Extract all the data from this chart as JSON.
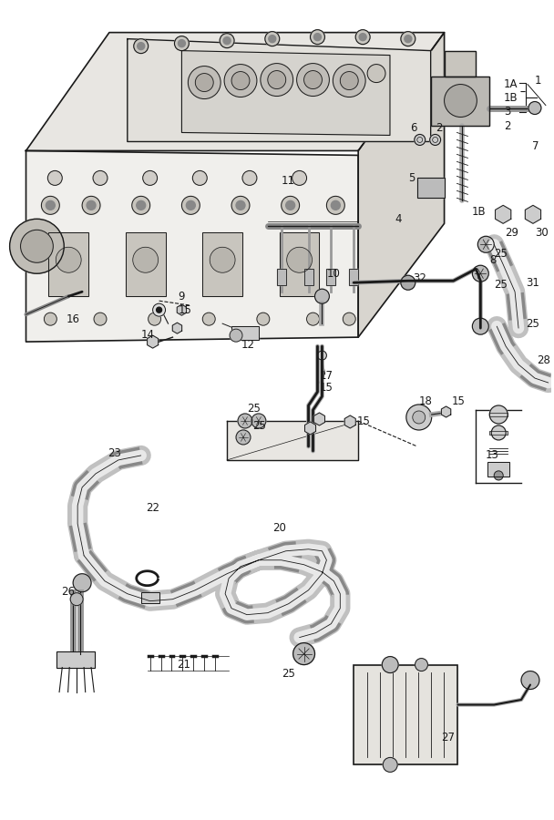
{
  "bg_color": "#ffffff",
  "line_color": "#1a1a1a",
  "fig_width": 6.08,
  "fig_height": 9.0,
  "dpi": 100
}
